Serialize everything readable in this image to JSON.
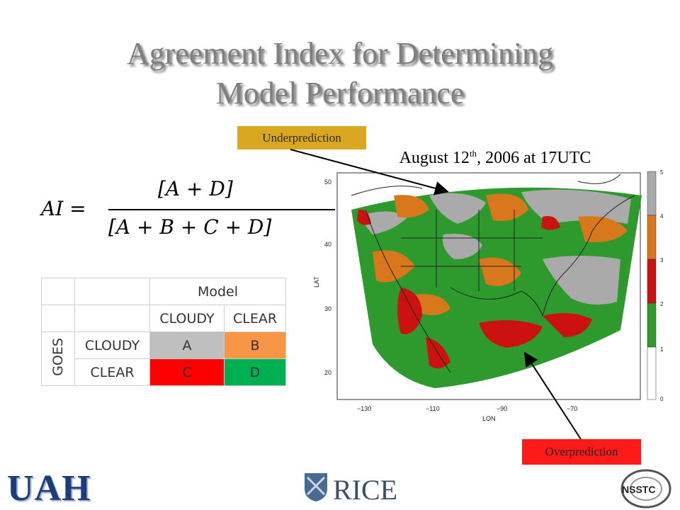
{
  "title": {
    "line1": "Agreement Index for Determining",
    "line2": "Model Performance"
  },
  "formula": {
    "lhs": "AI =",
    "numerator": "[A + D]",
    "denominator": "[A + B + C + D]"
  },
  "table": {
    "header_model": "Model",
    "header_cloudy": "CLOUDY",
    "header_clear": "CLEAR",
    "goes": "GOES",
    "row_cloudy": "CLOUDY",
    "row_clear": "CLEAR",
    "cells": {
      "a": "A",
      "b": "B",
      "c": "C",
      "d": "D"
    },
    "colors": {
      "a": "#bfbfbf",
      "b": "#f79646",
      "c": "#ff0000",
      "d": "#00b050"
    }
  },
  "callouts": {
    "underprediction": "Underprediction",
    "overprediction": "Overprediction",
    "under_color": "#d9a820",
    "over_color": "#ff1a1a"
  },
  "date_caption": {
    "main": "August 12",
    "sup": "th",
    "rest": ", 2006 at 17UTC"
  },
  "map": {
    "ylabel": "LAT",
    "xlabel": "LON",
    "y_ticks": [
      "50",
      "40",
      "30",
      "20"
    ],
    "x_ticks": [
      "−130",
      "−110",
      "−90",
      "−70"
    ],
    "colorbar_ticks": [
      "5",
      "4",
      "3",
      "2",
      "1",
      "0"
    ],
    "colorbar_colors": [
      "#aaaaaa",
      "#d9771c",
      "#cc1111",
      "#2e9a2e",
      "#ffffff"
    ]
  },
  "logos": {
    "uah": "UAH",
    "rice": "RICE",
    "nsstc": "NSSTC"
  }
}
